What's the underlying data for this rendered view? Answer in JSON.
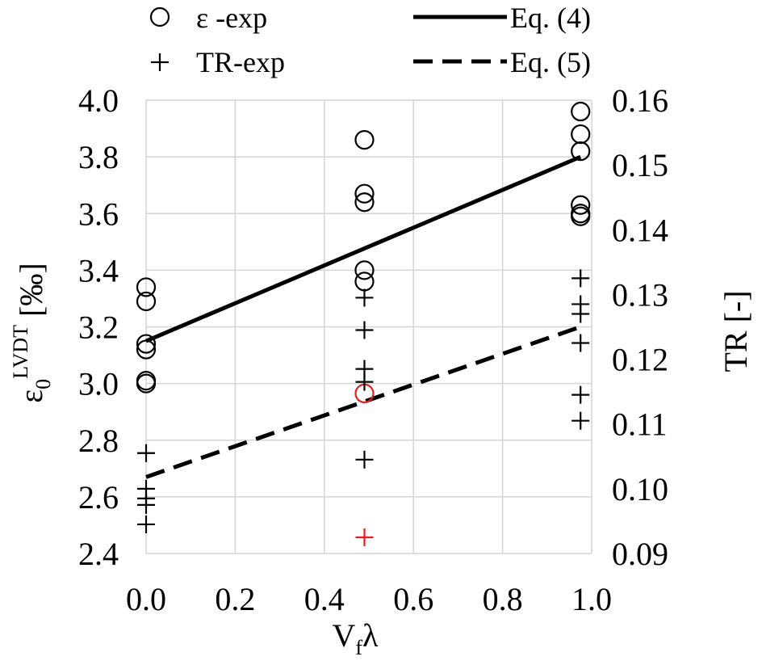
{
  "chart_data": {
    "type": "scatter",
    "title": "",
    "x_axis": {
      "label": "V",
      "label_subscript": "f",
      "label_suffix": "λ",
      "range": [
        0.0,
        1.0
      ],
      "ticks": [
        "0.0",
        "0.2",
        "0.4",
        "0.6",
        "0.8",
        "1.0"
      ],
      "tick_values": [
        0.0,
        0.2,
        0.4,
        0.6,
        0.8,
        1.0
      ]
    },
    "y_axis_left": {
      "label_symbol": "ε",
      "label_subscript": "0",
      "label_superscript": "LVDT",
      "label_unit": " [‰]",
      "range": [
        2.4,
        4.0
      ],
      "ticks": [
        "2.4",
        "2.6",
        "2.8",
        "3.0",
        "3.2",
        "3.4",
        "3.6",
        "3.8",
        "4.0"
      ],
      "tick_values": [
        2.4,
        2.6,
        2.8,
        3.0,
        3.2,
        3.4,
        3.6,
        3.8,
        4.0
      ]
    },
    "y_axis_right": {
      "label": "TR [-]",
      "range": [
        0.09,
        0.16
      ],
      "ticks": [
        "0.09",
        "0.10",
        "0.11",
        "0.12",
        "0.13",
        "0.14",
        "0.15",
        "0.16"
      ],
      "tick_values": [
        0.09,
        0.1,
        0.11,
        0.12,
        0.13,
        0.14,
        0.15,
        0.16
      ]
    },
    "grid": true,
    "legend_position": "top",
    "series": [
      {
        "name": "ε -exp",
        "kind": "scatter",
        "marker": "circle",
        "axis": "left",
        "color": "#000000",
        "points": [
          [
            0.0,
            3.34
          ],
          [
            0.0,
            3.29
          ],
          [
            0.0,
            3.14
          ],
          [
            0.0,
            3.12
          ],
          [
            0.0,
            3.01
          ],
          [
            0.0,
            3.0
          ],
          [
            0.49,
            3.86
          ],
          [
            0.49,
            3.67
          ],
          [
            0.49,
            3.64
          ],
          [
            0.49,
            3.4
          ],
          [
            0.49,
            3.36
          ],
          [
            0.975,
            3.96
          ],
          [
            0.975,
            3.88
          ],
          [
            0.975,
            3.82
          ],
          [
            0.975,
            3.63
          ],
          [
            0.975,
            3.6
          ],
          [
            0.975,
            3.59
          ]
        ]
      },
      {
        "name": "",
        "kind": "scatter",
        "marker": "circle",
        "axis": "left",
        "color": "#e02020",
        "points": [
          [
            0.49,
            2.965
          ]
        ]
      },
      {
        "name": "TR-exp",
        "kind": "scatter",
        "marker": "plus",
        "axis": "right",
        "color": "#000000",
        "points": [
          [
            0.0,
            0.1055
          ],
          [
            0.0,
            0.1
          ],
          [
            0.0,
            0.0985
          ],
          [
            0.0,
            0.0975
          ],
          [
            0.0,
            0.0945
          ],
          [
            0.49,
            0.1295
          ],
          [
            0.49,
            0.1245
          ],
          [
            0.49,
            0.1185
          ],
          [
            0.49,
            0.1165
          ],
          [
            0.49,
            0.1045
          ],
          [
            0.975,
            0.1325
          ],
          [
            0.975,
            0.1285
          ],
          [
            0.975,
            0.127
          ],
          [
            0.975,
            0.1225
          ],
          [
            0.975,
            0.1145
          ],
          [
            0.975,
            0.1105
          ]
        ]
      },
      {
        "name": "",
        "kind": "scatter",
        "marker": "plus",
        "axis": "right",
        "color": "#e02020",
        "points": [
          [
            0.49,
            0.0925
          ]
        ]
      },
      {
        "name": "Eq. (4)",
        "kind": "line",
        "style": "solid",
        "axis": "left",
        "color": "#000000",
        "points": [
          [
            0.0,
            3.15
          ],
          [
            0.975,
            3.8
          ]
        ]
      },
      {
        "name": "Eq. (5)",
        "kind": "line",
        "style": "dashed",
        "axis": "left",
        "color": "#000000",
        "points": [
          [
            0.0,
            2.67
          ],
          [
            0.975,
            3.2
          ]
        ]
      }
    ]
  }
}
